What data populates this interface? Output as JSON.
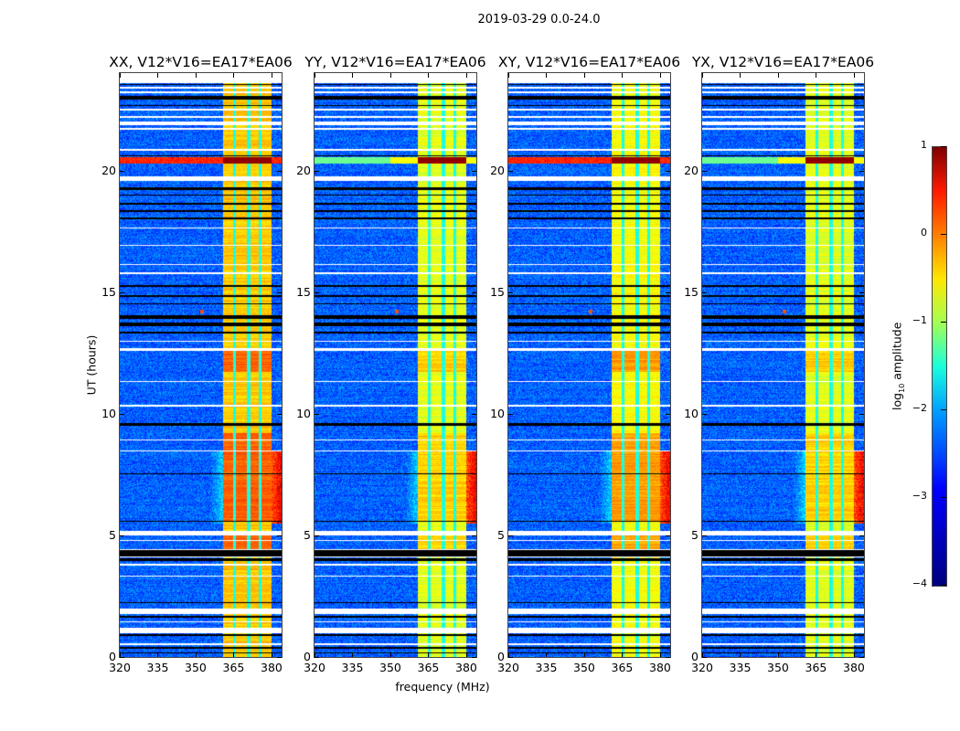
{
  "figure_title": "2019-03-29 0.0-24.0",
  "chart_data": {
    "type": "heatmap",
    "title": "2019-03-29 0.0-24.0",
    "xlabel": "frequency (MHz)",
    "ylabel": "UT (hours)",
    "xlim": [
      320,
      384
    ],
    "ylim": [
      0,
      24
    ],
    "xticks": [
      320,
      335,
      350,
      365,
      380
    ],
    "yticks": [
      0,
      5,
      10,
      15,
      20
    ],
    "panels": [
      {
        "title": "XX, V12*V16=EA17*EA06",
        "pol": "XX",
        "band_level": -0.6,
        "red_strip_full_width": true
      },
      {
        "title": "YY, V12*V16=EA17*EA06",
        "pol": "YY",
        "band_level": -1.0,
        "red_strip_full_width": false
      },
      {
        "title": "XY, V12*V16=EA17*EA06",
        "pol": "XY",
        "band_level": -0.9,
        "red_strip_full_width": true
      },
      {
        "title": "YX, V12*V16=EA17*EA06",
        "pol": "YX",
        "band_level": -1.0,
        "red_strip_full_width": false
      }
    ],
    "background_level": -2.9,
    "bright_band_mhz": [
      361,
      380
    ],
    "band_notches_mhz": [
      365.5,
      371,
      375.6
    ],
    "strong_rfi_hours": [
      20.3,
      20.55
    ],
    "flagged_hours_white": [
      [
        23.38,
        23.45
      ],
      [
        23.18,
        23.24
      ],
      [
        22.47,
        22.53
      ],
      [
        22.17,
        22.23
      ],
      [
        21.85,
        22.02
      ],
      [
        21.68,
        21.74
      ],
      [
        20.82,
        20.88
      ],
      [
        19.58,
        19.76
      ],
      [
        17.6,
        17.65
      ],
      [
        16.9,
        16.95
      ],
      [
        16.1,
        16.16
      ],
      [
        15.72,
        15.8
      ],
      [
        12.95,
        13.0
      ],
      [
        12.6,
        12.68
      ],
      [
        11.3,
        11.35
      ],
      [
        10.3,
        10.36
      ],
      [
        8.9,
        8.95
      ],
      [
        8.45,
        8.5
      ],
      [
        5.0,
        5.17
      ],
      [
        4.78,
        4.82
      ],
      [
        4.38,
        4.42
      ],
      [
        4.1,
        4.13
      ],
      [
        3.76,
        3.83
      ],
      [
        3.31,
        3.36
      ],
      [
        1.75,
        1.98
      ],
      [
        1.43,
        1.48
      ],
      [
        0.97,
        1.2
      ],
      [
        0.5,
        0.55
      ]
    ],
    "flagged_hours_black": [
      [
        23.5,
        23.56
      ],
      [
        22.9,
        23.05
      ],
      [
        22.65,
        22.7
      ],
      [
        20.58,
        20.62
      ],
      [
        19.2,
        19.3
      ],
      [
        18.95,
        19.02
      ],
      [
        18.6,
        18.68
      ],
      [
        18.3,
        18.35
      ],
      [
        18.0,
        18.05
      ],
      [
        15.2,
        15.3
      ],
      [
        14.8,
        14.87
      ],
      [
        14.5,
        14.55
      ],
      [
        13.9,
        14.05
      ],
      [
        13.6,
        13.75
      ],
      [
        13.3,
        13.38
      ],
      [
        9.5,
        9.6
      ],
      [
        7.5,
        7.55
      ],
      [
        5.55,
        5.6
      ],
      [
        4.15,
        4.38
      ],
      [
        3.95,
        4.05
      ],
      [
        2.2,
        2.24
      ],
      [
        1.6,
        1.7
      ],
      [
        0.85,
        0.95
      ],
      [
        0.35,
        0.4
      ],
      [
        0.15,
        0.2
      ]
    ],
    "colorbar": {
      "label": "log10 amplitude",
      "label_base": "log",
      "label_sub": "10",
      "label_rest": " amplitude",
      "range": [
        -4,
        1
      ],
      "ticks": [
        1,
        0,
        -1,
        -2,
        -3,
        -4
      ],
      "tick_labels": [
        "1",
        "0",
        "−1",
        "−2",
        "−3",
        "−4"
      ],
      "colormap": "jet"
    }
  }
}
